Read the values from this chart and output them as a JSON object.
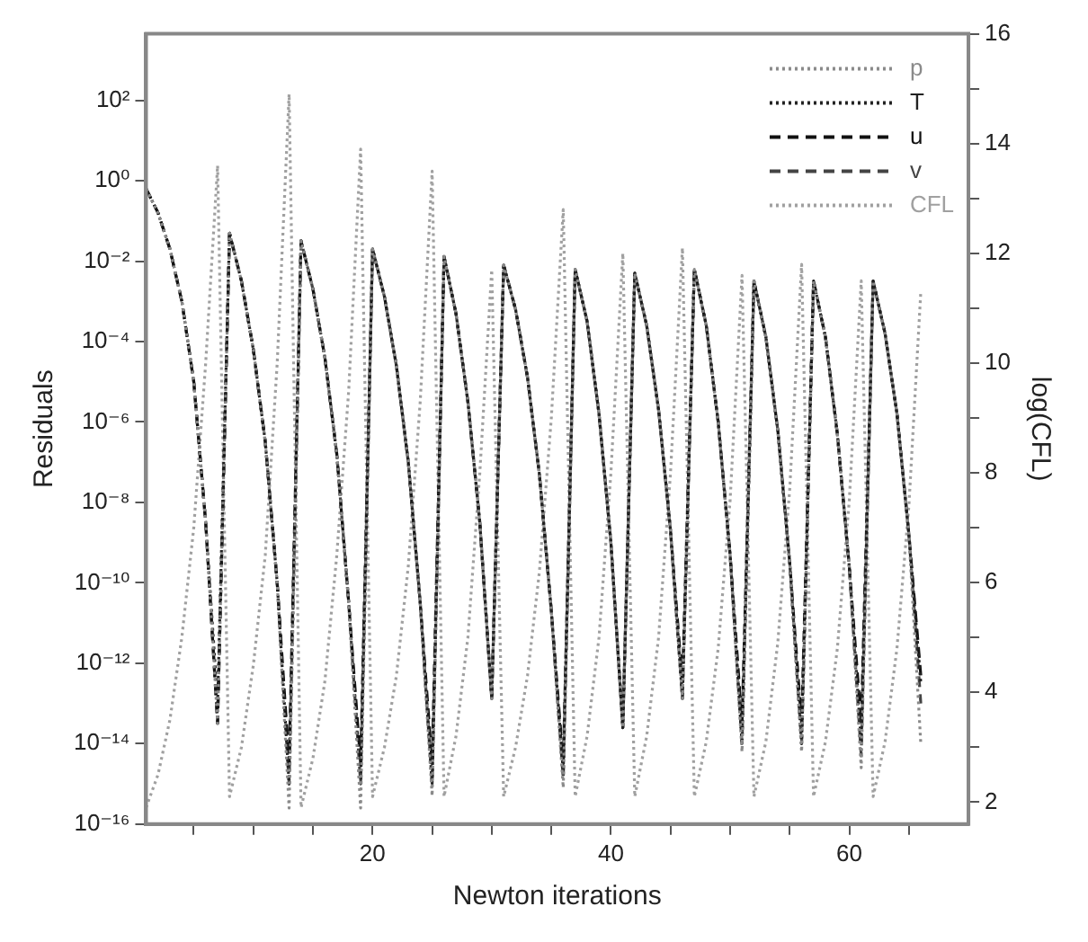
{
  "chart_data": {
    "type": "line",
    "xlabel": "Newton iterations",
    "ylabel": "Residuals",
    "y2label": "log(CFL)",
    "x": [
      1,
      2,
      3,
      4,
      5,
      6,
      7,
      8,
      9,
      10,
      11,
      12,
      13,
      14,
      15,
      16,
      17,
      18,
      19,
      20,
      21,
      22,
      23,
      24,
      25,
      26,
      27,
      28,
      29,
      30,
      31,
      32,
      33,
      34,
      35,
      36,
      37,
      38,
      39,
      40,
      41,
      42,
      43,
      44,
      45,
      46,
      47,
      48,
      49,
      50,
      51,
      52,
      53,
      54,
      55,
      56,
      57,
      58,
      59,
      60,
      61,
      62,
      63,
      64,
      65,
      66
    ],
    "series": [
      {
        "name": "p",
        "color": "#8a8a8a",
        "line_style": "dotted",
        "values": [
          0.63,
          0.16,
          0.02,
          0.001,
          1e-05,
          3.2e-09,
          3.2e-14,
          0.05,
          0.0032,
          6.3e-05,
          3.2e-07,
          1e-10,
          2.5e-16,
          0.032,
          0.002,
          4e-05,
          1.6e-07,
          3.2e-11,
          2.5e-16,
          0.02,
          0.0013,
          2.5e-05,
          1e-07,
          3.2e-11,
          5e-16,
          0.013,
          0.0005,
          3.2e-06,
          3.2e-09,
          1.3e-13,
          0.008,
          0.00063,
          1.3e-05,
          5e-08,
          2e-11,
          8e-16,
          0.0063,
          0.00032,
          1.6e-06,
          1e-09,
          2.5e-14,
          0.005,
          0.00025,
          2e-06,
          2e-09,
          1.3e-13,
          0.0063,
          0.00025,
          1e-06,
          5e-10,
          6.3e-15,
          0.0032,
          0.00013,
          6.3e-07,
          3.2e-10,
          6.3e-15,
          0.0032,
          0.00013,
          5e-07,
          2.5e-10,
          2.5e-15,
          0.0032,
          0.00016,
          1.6e-06,
          1.6e-09,
          1e-14
        ]
      },
      {
        "name": "T",
        "color": "#222222",
        "line_style": "dotted",
        "values": [
          0.63,
          0.16,
          0.02,
          0.001,
          1e-05,
          3.2e-09,
          1e-13,
          0.05,
          0.0032,
          6.3e-05,
          3.2e-07,
          1e-10,
          1e-15,
          0.032,
          0.002,
          4e-05,
          1.6e-07,
          3.2e-11,
          1e-15,
          0.02,
          0.0013,
          2.5e-05,
          1e-07,
          3.2e-11,
          1e-15,
          0.013,
          0.0005,
          3.2e-06,
          3.2e-09,
          1.3e-13,
          0.008,
          0.00063,
          1.3e-05,
          5e-08,
          2e-11,
          2e-15,
          0.0063,
          0.00032,
          1.6e-06,
          1e-09,
          2.5e-14,
          0.005,
          0.00025,
          2e-06,
          2e-09,
          1.3e-13,
          0.0063,
          0.00025,
          1e-06,
          5e-10,
          1e-14,
          0.0032,
          0.00013,
          6.3e-07,
          3.2e-10,
          1e-14,
          0.0032,
          0.00013,
          5e-07,
          2.5e-10,
          1e-14,
          0.0032,
          0.00016,
          1.6e-06,
          1.6e-09,
          3.2e-13
        ]
      },
      {
        "name": "u",
        "color": "#111111",
        "line_style": "dashed",
        "values": [
          0.63,
          0.16,
          0.02,
          0.001,
          1e-05,
          3.2e-09,
          3.2e-14,
          0.05,
          0.0032,
          6.3e-05,
          3.2e-07,
          1e-10,
          3.2e-15,
          0.032,
          0.002,
          4e-05,
          1.6e-07,
          3.2e-11,
          3.2e-15,
          0.02,
          0.0013,
          2.5e-05,
          1e-07,
          3.2e-11,
          3.2e-15,
          0.013,
          0.0005,
          3.2e-06,
          3.2e-09,
          1.3e-13,
          0.008,
          0.00063,
          1.3e-05,
          5e-08,
          2e-11,
          3.2e-15,
          0.0063,
          0.00032,
          1.6e-06,
          1e-09,
          2.5e-14,
          0.005,
          0.00025,
          2e-06,
          2e-09,
          3.2e-13,
          0.0063,
          0.00025,
          1e-06,
          5e-10,
          3.2e-14,
          0.0032,
          0.00013,
          6.3e-07,
          3.2e-10,
          3.2e-14,
          0.0032,
          0.00013,
          5e-07,
          2.5e-10,
          3.2e-14,
          0.0032,
          0.00016,
          1.6e-06,
          1.6e-09,
          5e-13
        ]
      },
      {
        "name": "v",
        "color": "#444444",
        "line_style": "dashed",
        "values": [
          0.63,
          0.16,
          0.02,
          0.001,
          1e-05,
          3.2e-09,
          3.2e-14,
          0.05,
          0.0032,
          6.3e-05,
          3.2e-07,
          1e-10,
          1e-15,
          0.032,
          0.002,
          4e-05,
          1.6e-07,
          3.2e-11,
          1e-15,
          0.02,
          0.0013,
          2.5e-05,
          1e-07,
          3.2e-11,
          1e-15,
          0.013,
          0.0005,
          3.2e-06,
          3.2e-09,
          1.3e-13,
          0.008,
          0.00063,
          1.3e-05,
          5e-08,
          2e-11,
          1.3e-15,
          0.0063,
          0.00032,
          1.6e-06,
          1e-09,
          2.5e-14,
          0.005,
          0.00025,
          2e-06,
          2e-09,
          1.3e-13,
          0.0063,
          0.00025,
          1e-06,
          5e-10,
          1e-14,
          0.0032,
          0.00013,
          6.3e-07,
          3.2e-10,
          1e-14,
          0.0032,
          0.00013,
          5e-07,
          2.5e-10,
          5e-15,
          0.0032,
          0.00016,
          1.6e-06,
          1.6e-09,
          1e-13
        ]
      },
      {
        "name": "CFL",
        "color": "#a0a0a0",
        "line_style": "dotted",
        "axis": "y2",
        "values": [
          1.9,
          2.5,
          3.5,
          5,
          7,
          10,
          13.6,
          2.1,
          3,
          4.5,
          6.5,
          10,
          14.9,
          1.9,
          2.8,
          4.2,
          6.5,
          9.5,
          13.9,
          2.1,
          3,
          4.3,
          6.3,
          9.3,
          13.5,
          2.1,
          3.2,
          5,
          8,
          11.7,
          2.1,
          3,
          4.3,
          6.2,
          9,
          12.8,
          2.1,
          3.2,
          5,
          8,
          12,
          2.1,
          3.2,
          5,
          8,
          12.1,
          2.1,
          3.1,
          4.8,
          7.5,
          11.6,
          2.1,
          3.1,
          4.9,
          7.7,
          11.8,
          2.1,
          3.1,
          4.8,
          7.5,
          11.5,
          2.1,
          3.1,
          4.8,
          7.4,
          11.3
        ]
      }
    ],
    "log": "y",
    "xlim": [
      1,
      70
    ],
    "xticks": [
      {
        "value": 5,
        "label": null
      },
      {
        "value": 10,
        "label": null
      },
      {
        "value": 15,
        "label": null
      },
      20,
      {
        "value": 25,
        "label": null
      },
      {
        "value": 30,
        "label": null
      },
      {
        "value": 35,
        "label": null
      },
      40,
      {
        "value": 45,
        "label": null
      },
      {
        "value": 50,
        "label": null
      },
      {
        "value": 55,
        "label": null
      },
      60,
      {
        "value": 65,
        "label": null
      }
    ],
    "ylim": [
      1e-16,
      4500
    ],
    "yticks": [
      {
        "value": 1e-16,
        "label": "10⁻¹⁶"
      },
      {
        "value": 1e-14,
        "label": "10⁻¹⁴"
      },
      {
        "value": 1e-12,
        "label": "10⁻¹²"
      },
      {
        "value": 1e-10,
        "label": "10⁻¹⁰"
      },
      {
        "value": 1e-08,
        "label": "10⁻⁸"
      },
      {
        "value": 1e-06,
        "label": "10⁻⁶"
      },
      {
        "value": 0.0001,
        "label": "10⁻⁴"
      },
      {
        "value": 0.01,
        "label": "10⁻²"
      },
      {
        "value": 1,
        "label": "10⁰"
      },
      {
        "value": 100,
        "label": "10²"
      }
    ],
    "y2lim": [
      1.6,
      16
    ],
    "y2ticks": [
      2,
      {
        "value": 3,
        "label": null
      },
      4,
      {
        "value": 5,
        "label": null
      },
      6,
      {
        "value": 7,
        "label": null
      },
      8,
      {
        "value": 9,
        "label": null
      },
      10,
      {
        "value": 11,
        "label": null
      },
      12,
      {
        "value": 13,
        "label": null
      },
      14,
      {
        "value": 15,
        "label": null
      },
      16
    ],
    "grid": false,
    "legend": "top right"
  }
}
